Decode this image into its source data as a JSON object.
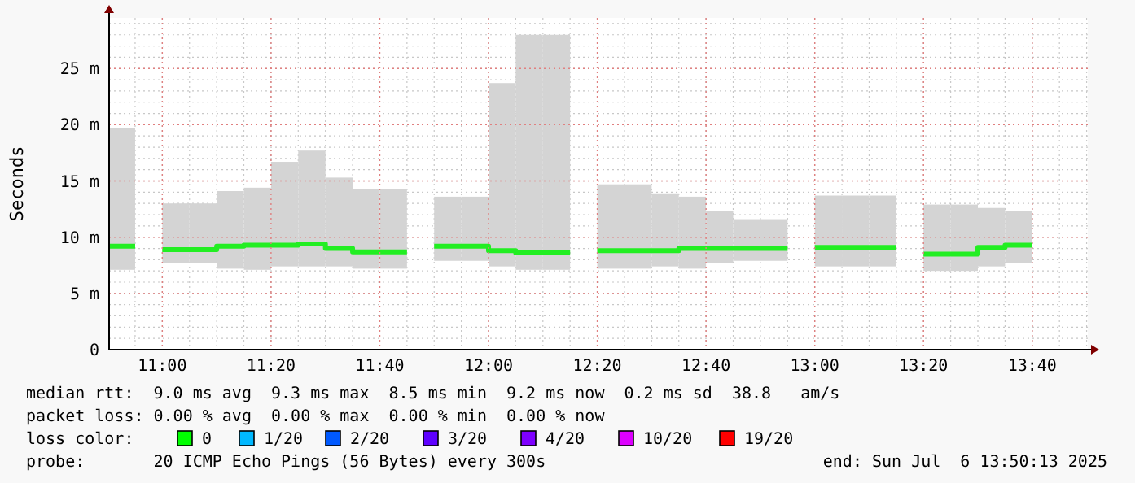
{
  "chart_data": {
    "type": "step",
    "ylabel": "Seconds",
    "x": [
      10.8369,
      10.9167,
      11,
      11.0833,
      11.1667,
      11.25,
      11.3333,
      11.4167,
      11.5,
      11.5833,
      11.6667,
      11.75,
      11.8333,
      11.9167,
      12,
      12.0833,
      12.1667,
      12.25,
      12.3333,
      12.4167,
      12.5,
      12.5833,
      12.6667,
      12.75,
      12.8333,
      12.9167,
      13,
      13.0833,
      13.1667,
      13.25,
      13.3333,
      13.4167,
      13.5,
      13.5833,
      13.6667
    ],
    "series": [
      {
        "color": "#22ee22",
        "values": [
          9.2,
          null,
          8.9,
          8.9,
          9.2,
          9.3,
          9.3,
          9.4,
          9.0,
          8.7,
          8.7,
          null,
          9.2,
          9.2,
          8.8,
          8.6,
          8.6,
          null,
          8.8,
          8.8,
          8.8,
          9.0,
          9.0,
          9.0,
          9.0,
          null,
          9.1,
          9.1,
          9.1,
          null,
          8.5,
          8.5,
          9.1,
          9.3,
          9.3
        ],
        "lower": [
          7.1,
          null,
          7.7,
          7.7,
          7.2,
          7.1,
          7.4,
          7.4,
          7.4,
          7.2,
          7.2,
          null,
          7.9,
          7.9,
          7.4,
          7.1,
          7.1,
          null,
          7.2,
          7.2,
          7.4,
          7.2,
          7.7,
          7.9,
          7.9,
          null,
          7.4,
          7.4,
          7.4,
          null,
          7.0,
          7.0,
          7.4,
          7.7,
          7.7
        ],
        "upper": [
          19.7,
          null,
          13.0,
          13.0,
          14.1,
          14.4,
          16.7,
          17.7,
          15.3,
          14.3,
          14.3,
          null,
          13.6,
          13.6,
          23.7,
          28.0,
          28.0,
          null,
          14.7,
          14.7,
          13.9,
          13.6,
          12.3,
          11.6,
          11.6,
          null,
          13.7,
          13.7,
          13.7,
          null,
          12.9,
          12.9,
          12.6,
          12.3,
          12.3
        ]
      }
    ],
    "xlim": [
      10.8369,
      13.8369
    ],
    "xticks": [
      {
        "value": 11,
        "label": "11:00"
      },
      {
        "value": 11.3333,
        "label": "11:20"
      },
      {
        "value": 11.6667,
        "label": "11:40"
      },
      {
        "value": 12,
        "label": "12:00"
      },
      {
        "value": 12.3333,
        "label": "12:20"
      },
      {
        "value": 12.6667,
        "label": "12:40"
      },
      {
        "value": 13,
        "label": "13:00"
      },
      {
        "value": 13.3333,
        "label": "13:20"
      },
      {
        "value": 13.6667,
        "label": "13:40"
      }
    ],
    "ylim": [
      0,
      29.5
    ],
    "yticks": [
      0,
      {
        "value": 5,
        "label": "5 m"
      },
      {
        "value": 10,
        "label": "10 m"
      },
      {
        "value": 15,
        "label": "15 m"
      },
      {
        "value": 20,
        "label": "20 m"
      },
      {
        "value": 25,
        "label": "25 m"
      }
    ],
    "grid": true,
    "annotations": [
      "median rtt:  9.0 ms avg  9.3 ms max  8.5 ms min  9.2 ms now  0.2 ms sd  38.8   am/s",
      "packet loss: 0.00 % avg  0.00 % max  0.00 % min  0.00 % now",
      "loss color:",
      "0",
      "1/20",
      "2/20",
      "3/20",
      "4/20",
      "10/20",
      "19/20",
      "probe:       20 ICMP Echo Pings (56 Bytes) every 300s",
      "end: Sun Jul  6 13:50:13 2025"
    ]
  }
}
